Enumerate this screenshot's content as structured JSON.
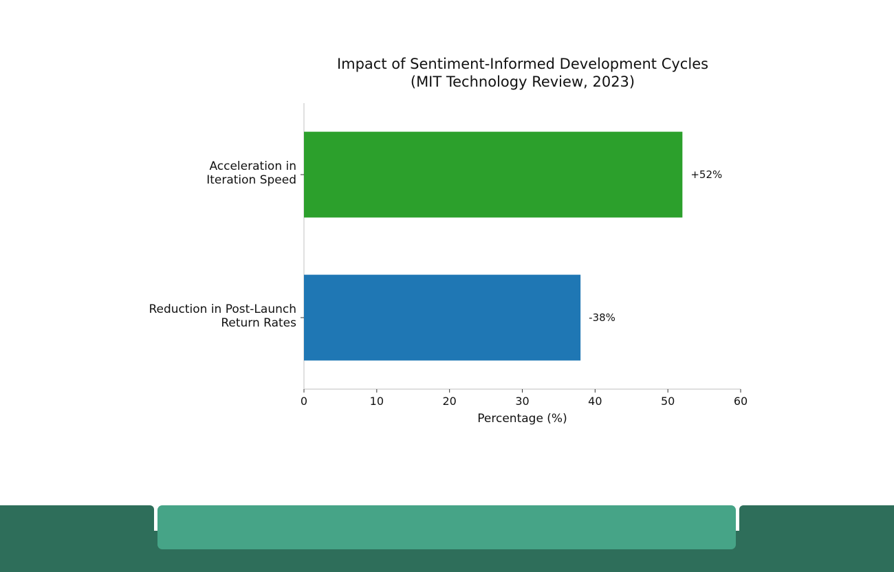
{
  "chart_data": {
    "type": "bar",
    "orientation": "horizontal",
    "title_lines": [
      "Impact of Sentiment-Informed Development Cycles",
      "(MIT Technology Review, 2023)"
    ],
    "categories": [
      "Acceleration in Iteration Speed",
      "Reduction in Post-Launch Return Rates"
    ],
    "category_lines": [
      [
        "Acceleration in",
        "Iteration Speed"
      ],
      [
        "Reduction in Post-Launch",
        "Return Rates"
      ]
    ],
    "values": [
      52,
      38
    ],
    "data_labels": [
      "+52%",
      "-38%"
    ],
    "bar_colors": [
      "#2ca02c",
      "#1f77b4"
    ],
    "xlabel": "Percentage (%)",
    "ylabel": "",
    "xlim": [
      0,
      60
    ],
    "xticks": [
      0,
      10,
      20,
      30,
      40,
      50,
      60
    ],
    "grid": false
  },
  "colors": {
    "footer_dark": "#2e6e5a",
    "footer_light": "#46a487"
  }
}
